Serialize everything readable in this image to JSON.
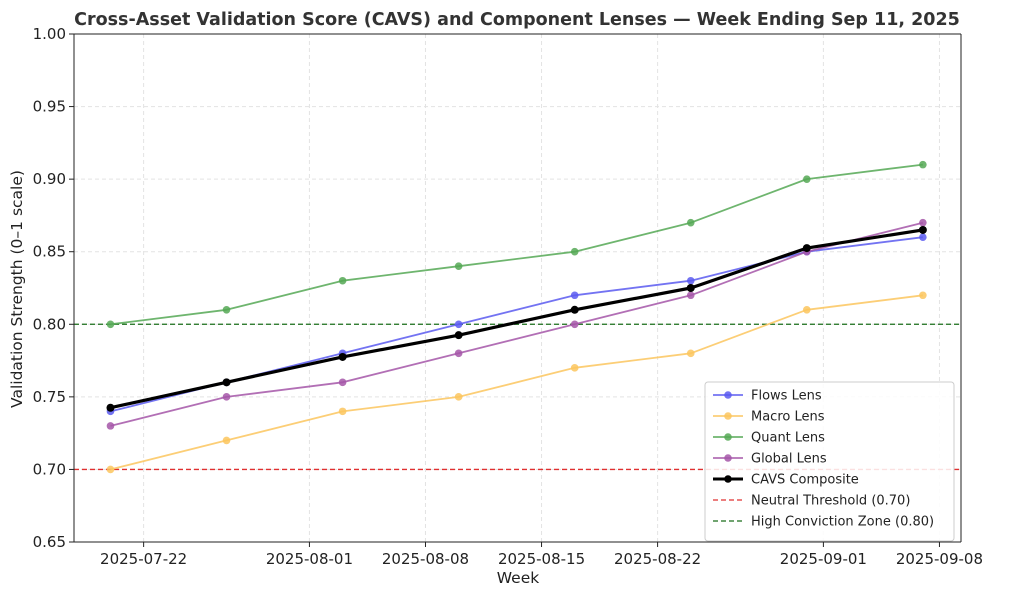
{
  "chart_data": {
    "type": "line",
    "title": "Cross-Asset Validation Score (CAVS) and Component Lenses — Week Ending Sep 11, 2025",
    "xlabel": "Week",
    "ylabel": "Validation Strength (0–1 scale)",
    "x": [
      "2025-07-20",
      "2025-07-27",
      "2025-08-03",
      "2025-08-10",
      "2025-08-17",
      "2025-08-24",
      "2025-08-31",
      "2025-09-07"
    ],
    "xticks": [
      "2025-07-22",
      "2025-08-01",
      "2025-08-08",
      "2025-08-15",
      "2025-08-22",
      "2025-09-01",
      "2025-09-08"
    ],
    "ylim": [
      0.65,
      1.0
    ],
    "yticks": [
      "0.65",
      "0.70",
      "0.75",
      "0.80",
      "0.85",
      "0.90",
      "0.95",
      "1.00"
    ],
    "grid": true,
    "legend_position": "bottom-right",
    "series": [
      {
        "name": "Flows Lens",
        "color": "#5b5bf0",
        "values": [
          0.74,
          0.76,
          0.78,
          0.8,
          0.82,
          0.83,
          0.85,
          0.86
        ]
      },
      {
        "name": "Macro Lens",
        "color": "#fcc55e",
        "values": [
          0.7,
          0.72,
          0.74,
          0.75,
          0.77,
          0.78,
          0.81,
          0.82
        ]
      },
      {
        "name": "Quant Lens",
        "color": "#55a855",
        "values": [
          0.8,
          0.81,
          0.83,
          0.84,
          0.85,
          0.87,
          0.9,
          0.91
        ]
      },
      {
        "name": "Global Lens",
        "color": "#a456a8",
        "values": [
          0.73,
          0.75,
          0.76,
          0.78,
          0.8,
          0.82,
          0.85,
          0.87
        ]
      },
      {
        "name": "CAVS Composite",
        "color": "#000000",
        "values": [
          0.7425,
          0.76,
          0.7775,
          0.7925,
          0.81,
          0.825,
          0.8525,
          0.865
        ]
      }
    ],
    "reference_lines": [
      {
        "name": "Neutral Threshold (0.70)",
        "value": 0.7,
        "color": "#e03030"
      },
      {
        "name": "High Conviction Zone (0.80)",
        "value": 0.8,
        "color": "#1a6e1a"
      }
    ]
  }
}
